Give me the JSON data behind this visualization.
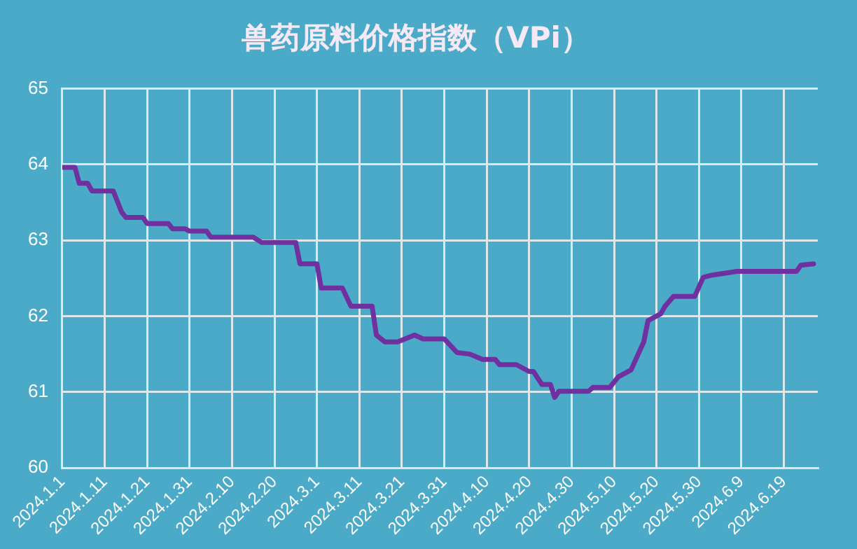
{
  "chart_data": {
    "type": "line",
    "title": "兽药原料价格指数（VPi）",
    "x": [
      "2024-01-01",
      "2024-01-04",
      "2024-01-05",
      "2024-01-07",
      "2024-01-08",
      "2024-01-13",
      "2024-01-15",
      "2024-01-16",
      "2024-01-20",
      "2024-01-21",
      "2024-01-26",
      "2024-01-27",
      "2024-01-30",
      "2024-01-31",
      "2024-02-04",
      "2024-02-05",
      "2024-02-15",
      "2024-02-17",
      "2024-02-25",
      "2024-02-26",
      "2024-03-01",
      "2024-03-02",
      "2024-03-07",
      "2024-03-09",
      "2024-03-14",
      "2024-03-15",
      "2024-03-17",
      "2024-03-20",
      "2024-03-24",
      "2024-03-26",
      "2024-03-31",
      "2024-04-03",
      "2024-04-06",
      "2024-04-09",
      "2024-04-12",
      "2024-04-13",
      "2024-04-17",
      "2024-04-20",
      "2024-04-21",
      "2024-04-23",
      "2024-04-25",
      "2024-04-26",
      "2024-04-27",
      "2024-05-04",
      "2024-05-05",
      "2024-05-09",
      "2024-05-11",
      "2024-05-14",
      "2024-05-17",
      "2024-05-18",
      "2024-05-21",
      "2024-05-22",
      "2024-05-24",
      "2024-05-29",
      "2024-05-31",
      "2024-06-02",
      "2024-06-08",
      "2024-06-22",
      "2024-06-23",
      "2024-06-26"
    ],
    "series": [
      {
        "color": "#7030a0",
        "values": [
          63.96,
          63.96,
          63.75,
          63.75,
          63.65,
          63.65,
          63.37,
          63.3,
          63.3,
          63.22,
          63.22,
          63.15,
          63.15,
          63.12,
          63.12,
          63.04,
          63.04,
          62.97,
          62.97,
          62.69,
          62.69,
          62.37,
          62.37,
          62.13,
          62.13,
          61.75,
          61.66,
          61.66,
          61.75,
          61.7,
          61.7,
          61.52,
          61.5,
          61.43,
          61.43,
          61.36,
          61.36,
          61.27,
          61.27,
          61.1,
          61.1,
          60.93,
          61.01,
          61.01,
          61.06,
          61.06,
          61.2,
          61.29,
          61.66,
          61.94,
          62.03,
          62.13,
          62.26,
          62.26,
          62.51,
          62.54,
          62.59,
          62.59,
          62.67,
          62.69
        ]
      }
    ],
    "xlim": [
      "2024-01-01",
      "2024-06-27"
    ],
    "xticks": [
      {
        "value": "2024-01-01",
        "label": "2024.1.1"
      },
      {
        "value": "2024-01-11",
        "label": "2024.1.11"
      },
      {
        "value": "2024-01-21",
        "label": "2024.1.21"
      },
      {
        "value": "2024-01-31",
        "label": "2024.1.31"
      },
      {
        "value": "2024-02-10",
        "label": "2024.2.10"
      },
      {
        "value": "2024-02-20",
        "label": "2024.2.20"
      },
      {
        "value": "2024-03-01",
        "label": "2024.3.1"
      },
      {
        "value": "2024-03-11",
        "label": "2024.3.11"
      },
      {
        "value": "2024-03-21",
        "label": "2024.3.21"
      },
      {
        "value": "2024-03-31",
        "label": "2024.3.31"
      },
      {
        "value": "2024-04-10",
        "label": "2024.4.10"
      },
      {
        "value": "2024-04-20",
        "label": "2024.4.20"
      },
      {
        "value": "2024-04-30",
        "label": "2024.4.30"
      },
      {
        "value": "2024-05-10",
        "label": "2024.5.10"
      },
      {
        "value": "2024-05-20",
        "label": "2024.5.20"
      },
      {
        "value": "2024-05-30",
        "label": "2024.5.30"
      },
      {
        "value": "2024-06-09",
        "label": "2024.6.9"
      },
      {
        "value": "2024-06-19",
        "label": "2024.6.19"
      }
    ],
    "ylim": [
      60,
      65
    ],
    "yticks": [
      60,
      61,
      62,
      63,
      64,
      65
    ],
    "grid": true,
    "marker": "none",
    "line_style": "solid"
  }
}
